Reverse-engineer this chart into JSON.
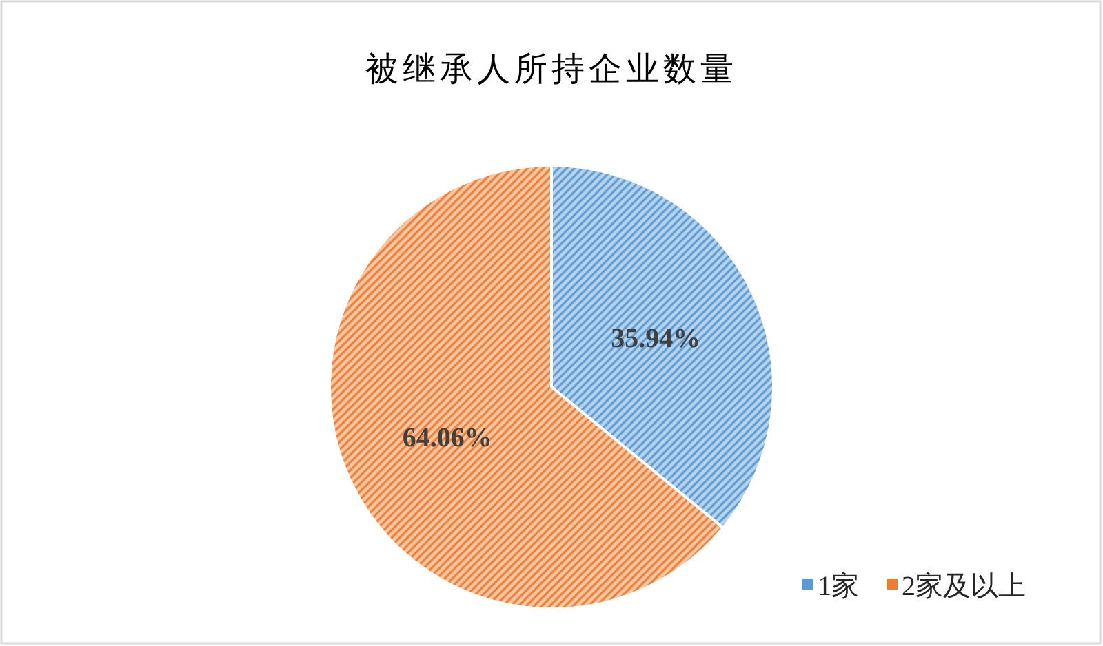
{
  "chart_data": {
    "type": "pie",
    "title": "被继承人所持企业数量",
    "categories": [
      "1家",
      "2家及以上"
    ],
    "values": [
      35.94,
      64.06
    ],
    "value_labels": [
      "35.94%",
      "64.06%"
    ],
    "colors": [
      "#5b9bd5",
      "#ed7d31"
    ],
    "legend": "bottom right"
  }
}
